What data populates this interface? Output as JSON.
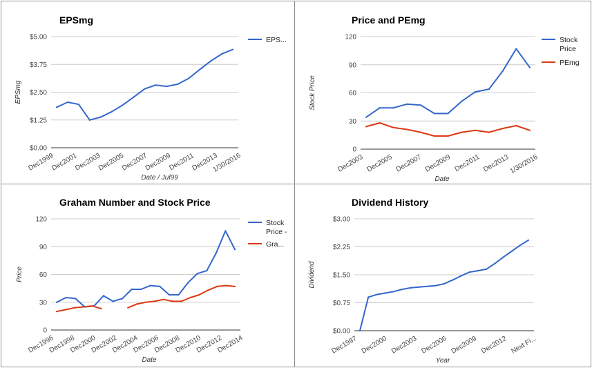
{
  "chart_data": [
    {
      "type": "line",
      "title": "EPSmg",
      "xlabel": "Date / Jul99",
      "ylabel": "EPSmg",
      "ylim": [
        0,
        5
      ],
      "y_ticks": [
        "$0.00",
        "$1.25",
        "$2.50",
        "$3.75",
        "$5.00"
      ],
      "x_ticks": [
        "Dec1999",
        "Dec2001",
        "Dec2003",
        "Dec2005",
        "Dec2007",
        "Dec2009",
        "Dec2011",
        "Dec2013",
        "1/30/2016"
      ],
      "grid": true,
      "legend_position": "right",
      "series": [
        {
          "name": "EPS...",
          "color": "#3366cc",
          "values": [
            1.82,
            2.05,
            1.95,
            1.25,
            1.38,
            1.62,
            1.92,
            2.28,
            2.65,
            2.82,
            2.76,
            2.86,
            3.12,
            3.52,
            3.9,
            4.22,
            4.42
          ]
        }
      ]
    },
    {
      "type": "line",
      "title": "Price and PEmg",
      "xlabel": "Date",
      "ylabel": "Stock Price",
      "ylim": [
        0,
        120
      ],
      "y_ticks": [
        "0",
        "30",
        "60",
        "90",
        "120"
      ],
      "x_ticks": [
        "Dec2003",
        "Dec2005",
        "Dec2007",
        "Dec2009",
        "Dec2011",
        "Dec2013",
        "1/30/2016"
      ],
      "grid": true,
      "legend_position": "right",
      "series": [
        {
          "name": "Stock Price",
          "color": "#3366cc",
          "values": [
            34,
            44,
            44,
            48,
            47,
            38,
            38,
            51,
            61,
            64,
            83,
            107,
            87
          ]
        },
        {
          "name": "PEmg",
          "color": "#dc3912",
          "values": [
            24,
            28,
            23,
            21,
            18,
            14,
            14,
            18,
            20,
            18,
            22,
            25,
            20
          ]
        }
      ]
    },
    {
      "type": "line",
      "title": "Graham Number and Stock Price",
      "xlabel": "Date",
      "ylabel": "Price",
      "ylim": [
        0,
        120
      ],
      "y_ticks": [
        "0",
        "30",
        "60",
        "90",
        "120"
      ],
      "x_ticks": [
        "Dec1996",
        "Dec1998",
        "Dec2000",
        "Dec2002",
        "Dec2004",
        "Dec2006",
        "Dec2008",
        "Dec2010",
        "Dec2012",
        "Dec2014"
      ],
      "grid": true,
      "legend_position": "right",
      "series": [
        {
          "name": "Stock Price -",
          "color": "#3366cc",
          "values": [
            30,
            35,
            34,
            25,
            26,
            37,
            31,
            34,
            44,
            44,
            48,
            47,
            38,
            38,
            51,
            61,
            64,
            83,
            107,
            87
          ]
        },
        {
          "name": "Gra...",
          "color": "#dc3912",
          "values": [
            20,
            22,
            24,
            25,
            26,
            23,
            null,
            null,
            24,
            28,
            30,
            31,
            33,
            31,
            31,
            35,
            38,
            43,
            47,
            48,
            47
          ]
        }
      ]
    },
    {
      "type": "line",
      "title": "Dividend History",
      "xlabel": "Year",
      "ylabel": "Dividend",
      "ylim": [
        0,
        3
      ],
      "y_ticks": [
        "$0.00",
        "$0.75",
        "$1.50",
        "$2.25",
        "$3.00"
      ],
      "x_ticks": [
        "Dec1997",
        "Dec2000",
        "Dec2003",
        "Dec2006",
        "Dec2009",
        "Dec2012",
        "Next Fi..."
      ],
      "grid": true,
      "legend_position": "none",
      "series": [
        {
          "name": "",
          "color": "#3366cc",
          "values": [
            0.0,
            0.9,
            0.97,
            1.01,
            1.05,
            1.11,
            1.15,
            1.17,
            1.19,
            1.21,
            1.26,
            1.36,
            1.47,
            1.57,
            1.61,
            1.65,
            1.8,
            1.97,
            2.13,
            2.29,
            2.43
          ]
        }
      ]
    }
  ]
}
